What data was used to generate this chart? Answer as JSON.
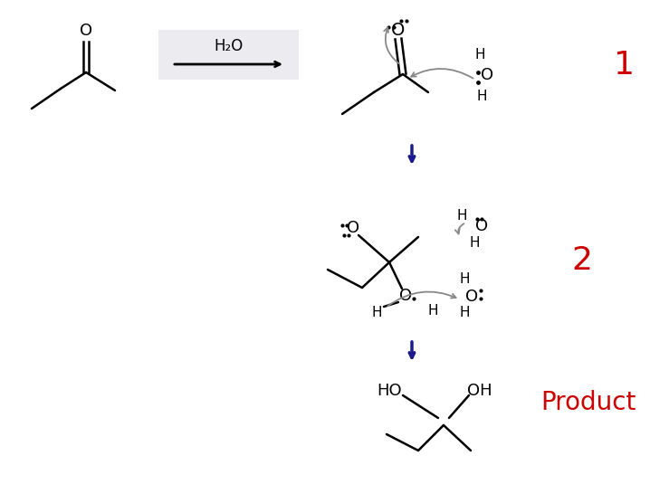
{
  "background": "#ffffff",
  "step1_label": "1",
  "step2_label": "2",
  "product_label": "Product",
  "reagent": "H₂O",
  "label_color": "#cc0000",
  "arrow_color": "#1a1a8c",
  "bond_color": "#000000",
  "curve_color": "#888888",
  "dot_color": "#000000",
  "box_color": "#ebebf0"
}
